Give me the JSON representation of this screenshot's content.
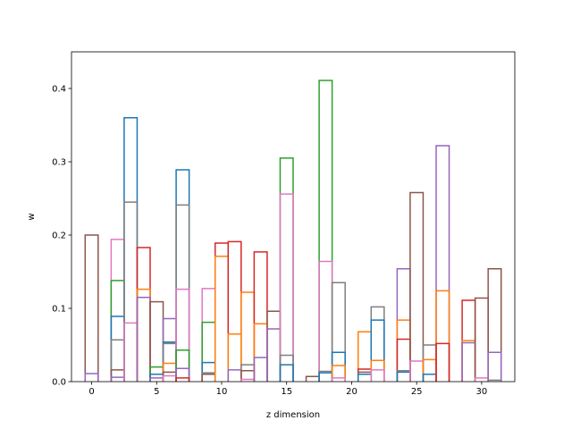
{
  "chart_data": {
    "type": "bar",
    "style": "step-outline",
    "xlabel": "z dimension",
    "ylabel": "w",
    "xlim": [
      -1.55,
      32.55
    ],
    "ylim": [
      0,
      0.45
    ],
    "xticks": [
      0,
      5,
      10,
      15,
      20,
      25,
      30
    ],
    "yticks": [
      0.0,
      0.1,
      0.2,
      0.3,
      0.4
    ],
    "xtick_labels": [
      "0",
      "5",
      "10",
      "15",
      "20",
      "25",
      "30"
    ],
    "ytick_labels": [
      "0.0",
      "0.1",
      "0.2",
      "0.3",
      "0.4"
    ],
    "bin_width": 1,
    "bins": [
      {
        "x": 0,
        "values": [
          {
            "c": "#8c564b",
            "v": 0.2
          },
          {
            "c": "#9467bd",
            "v": 0.011
          }
        ]
      },
      {
        "x": 2,
        "values": [
          {
            "c": "#e377c2",
            "v": 0.194
          },
          {
            "c": "#2ca02c",
            "v": 0.138
          },
          {
            "c": "#1f77b4",
            "v": 0.089
          },
          {
            "c": "#7f7f7f",
            "v": 0.057
          },
          {
            "c": "#8c564b",
            "v": 0.016
          },
          {
            "c": "#9467bd",
            "v": 0.006
          }
        ]
      },
      {
        "x": 3,
        "values": [
          {
            "c": "#1f77b4",
            "v": 0.36
          },
          {
            "c": "#7f7f7f",
            "v": 0.245
          },
          {
            "c": "#e377c2",
            "v": 0.08
          }
        ]
      },
      {
        "x": 4,
        "values": [
          {
            "c": "#d62728",
            "v": 0.183
          },
          {
            "c": "#ff7f0e",
            "v": 0.126
          },
          {
            "c": "#9467bd",
            "v": 0.115
          }
        ]
      },
      {
        "x": 5,
        "values": [
          {
            "c": "#8c564b",
            "v": 0.109
          },
          {
            "c": "#2ca02c",
            "v": 0.02
          },
          {
            "c": "#1f77b4",
            "v": 0.01
          },
          {
            "c": "#9467bd",
            "v": 0.005
          }
        ]
      },
      {
        "x": 6,
        "values": [
          {
            "c": "#9467bd",
            "v": 0.086
          },
          {
            "c": "#1f77b4",
            "v": 0.054
          },
          {
            "c": "#7f7f7f",
            "v": 0.052
          },
          {
            "c": "#ff7f0e",
            "v": 0.025
          },
          {
            "c": "#8c564b",
            "v": 0.013
          },
          {
            "c": "#e377c2",
            "v": 0.008
          }
        ]
      },
      {
        "x": 7,
        "values": [
          {
            "c": "#1f77b4",
            "v": 0.289
          },
          {
            "c": "#7f7f7f",
            "v": 0.241
          },
          {
            "c": "#e377c2",
            "v": 0.126
          },
          {
            "c": "#2ca02c",
            "v": 0.043
          },
          {
            "c": "#9467bd",
            "v": 0.018
          },
          {
            "c": "#d62728",
            "v": 0.005
          }
        ]
      },
      {
        "x": 9,
        "values": [
          {
            "c": "#e377c2",
            "v": 0.127
          },
          {
            "c": "#2ca02c",
            "v": 0.081
          },
          {
            "c": "#1f77b4",
            "v": 0.026
          },
          {
            "c": "#7f7f7f",
            "v": 0.012
          },
          {
            "c": "#8c564b",
            "v": 0.01
          }
        ]
      },
      {
        "x": 10,
        "values": [
          {
            "c": "#d62728",
            "v": 0.189
          },
          {
            "c": "#ff7f0e",
            "v": 0.171
          }
        ]
      },
      {
        "x": 11,
        "values": [
          {
            "c": "#d62728",
            "v": 0.191
          },
          {
            "c": "#ff7f0e",
            "v": 0.065
          },
          {
            "c": "#9467bd",
            "v": 0.016
          }
        ]
      },
      {
        "x": 12,
        "values": [
          {
            "c": "#ff7f0e",
            "v": 0.122
          },
          {
            "c": "#7f7f7f",
            "v": 0.023
          },
          {
            "c": "#8c564b",
            "v": 0.015
          },
          {
            "c": "#e377c2",
            "v": 0.003
          }
        ]
      },
      {
        "x": 13,
        "values": [
          {
            "c": "#d62728",
            "v": 0.177
          },
          {
            "c": "#ff7f0e",
            "v": 0.079
          },
          {
            "c": "#9467bd",
            "v": 0.033
          }
        ]
      },
      {
        "x": 14,
        "values": [
          {
            "c": "#8c564b",
            "v": 0.096
          },
          {
            "c": "#9467bd",
            "v": 0.072
          }
        ]
      },
      {
        "x": 15,
        "values": [
          {
            "c": "#2ca02c",
            "v": 0.305
          },
          {
            "c": "#e377c2",
            "v": 0.256
          },
          {
            "c": "#7f7f7f",
            "v": 0.036
          },
          {
            "c": "#1f77b4",
            "v": 0.023
          }
        ]
      },
      {
        "x": 17,
        "values": [
          {
            "c": "#8c564b",
            "v": 0.007
          }
        ]
      },
      {
        "x": 18,
        "values": [
          {
            "c": "#2ca02c",
            "v": 0.411
          },
          {
            "c": "#e377c2",
            "v": 0.164
          },
          {
            "c": "#7f7f7f",
            "v": 0.014
          },
          {
            "c": "#1f77b4",
            "v": 0.012
          }
        ]
      },
      {
        "x": 19,
        "values": [
          {
            "c": "#7f7f7f",
            "v": 0.135
          },
          {
            "c": "#1f77b4",
            "v": 0.04
          },
          {
            "c": "#ff7f0e",
            "v": 0.022
          },
          {
            "c": "#e377c2",
            "v": 0.005
          }
        ]
      },
      {
        "x": 21,
        "values": [
          {
            "c": "#ff7f0e",
            "v": 0.068
          },
          {
            "c": "#d62728",
            "v": 0.017
          },
          {
            "c": "#8c564b",
            "v": 0.013
          },
          {
            "c": "#1f77b4",
            "v": 0.01
          }
        ]
      },
      {
        "x": 22,
        "values": [
          {
            "c": "#7f7f7f",
            "v": 0.102
          },
          {
            "c": "#1f77b4",
            "v": 0.084
          },
          {
            "c": "#ff7f0e",
            "v": 0.029
          },
          {
            "c": "#e377c2",
            "v": 0.016
          }
        ]
      },
      {
        "x": 24,
        "values": [
          {
            "c": "#9467bd",
            "v": 0.154
          },
          {
            "c": "#ff7f0e",
            "v": 0.084
          },
          {
            "c": "#d62728",
            "v": 0.058
          },
          {
            "c": "#7f7f7f",
            "v": 0.015
          },
          {
            "c": "#1f77b4",
            "v": 0.013
          }
        ]
      },
      {
        "x": 25,
        "values": [
          {
            "c": "#8c564b",
            "v": 0.258
          },
          {
            "c": "#e377c2",
            "v": 0.028
          }
        ]
      },
      {
        "x": 26,
        "values": [
          {
            "c": "#7f7f7f",
            "v": 0.05
          },
          {
            "c": "#ff7f0e",
            "v": 0.03
          },
          {
            "c": "#1f77b4",
            "v": 0.01
          }
        ]
      },
      {
        "x": 27,
        "values": [
          {
            "c": "#9467bd",
            "v": 0.322
          },
          {
            "c": "#ff7f0e",
            "v": 0.124
          },
          {
            "c": "#d62728",
            "v": 0.052
          }
        ]
      },
      {
        "x": 29,
        "values": [
          {
            "c": "#d62728",
            "v": 0.111
          },
          {
            "c": "#ff7f0e",
            "v": 0.056
          },
          {
            "c": "#9467bd",
            "v": 0.053
          }
        ]
      },
      {
        "x": 30,
        "values": [
          {
            "c": "#8c564b",
            "v": 0.114
          },
          {
            "c": "#e377c2",
            "v": 0.005
          }
        ]
      },
      {
        "x": 31,
        "values": [
          {
            "c": "#8c564b",
            "v": 0.154
          },
          {
            "c": "#9467bd",
            "v": 0.04
          },
          {
            "c": "#7f7f7f",
            "v": 0.002
          }
        ]
      }
    ]
  }
}
